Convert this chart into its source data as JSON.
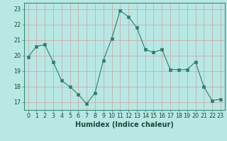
{
  "x": [
    0,
    1,
    2,
    3,
    4,
    5,
    6,
    7,
    8,
    9,
    10,
    11,
    12,
    13,
    14,
    15,
    16,
    17,
    18,
    19,
    20,
    21,
    22,
    23
  ],
  "y": [
    19.9,
    20.6,
    20.7,
    19.6,
    18.4,
    18.0,
    17.5,
    16.9,
    17.6,
    19.7,
    21.1,
    22.9,
    22.5,
    21.8,
    20.4,
    20.2,
    20.4,
    19.1,
    19.1,
    19.1,
    19.6,
    18.0,
    17.1,
    17.2
  ],
  "line_color": "#2e7d6e",
  "marker_color": "#2e7d6e",
  "bg_color": "#b8e8e4",
  "grid_color": "#d0a0a0",
  "xlabel": "Humidex (Indice chaleur)",
  "ylim": [
    16.5,
    23.4
  ],
  "xlim": [
    -0.5,
    23.5
  ],
  "yticks": [
    17,
    18,
    19,
    20,
    21,
    22,
    23
  ],
  "xticks": [
    0,
    1,
    2,
    3,
    4,
    5,
    6,
    7,
    8,
    9,
    10,
    11,
    12,
    13,
    14,
    15,
    16,
    17,
    18,
    19,
    20,
    21,
    22,
    23
  ],
  "tick_fontsize": 5.8,
  "label_fontsize": 7.0
}
